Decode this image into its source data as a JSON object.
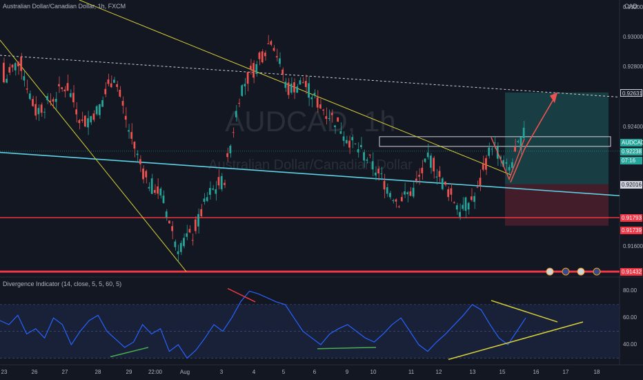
{
  "header": {
    "symbol_line": "Australian Dollar/Canadian Dollar, 1h, FXCM",
    "currency": "CAD",
    "indicator_line": "Divergence Indicator (14, close, 5, 5, 60, 5)"
  },
  "watermark": {
    "ticker": "AUDCAD, 1h",
    "name": "Australian Dollar/Canadian Dollar"
  },
  "price_axis_ticks": [
    "0.93200",
    "0.93000",
    "0.92800",
    "0.92600",
    "0.92400",
    "0.92200",
    "0.92000",
    "0.91800",
    "0.91600",
    "0.91432"
  ],
  "indicator_axis_ticks": [
    "80.00",
    "60.00",
    "40.00"
  ],
  "time_axis_ticks": [
    "23",
    "26",
    "27",
    "28",
    "29",
    "22:00",
    "Aug",
    "3",
    "4",
    "5",
    "6",
    "9",
    "10",
    "11",
    "12",
    "13",
    "15",
    "16",
    "17",
    "18",
    "19"
  ],
  "price_tags": [
    {
      "text": "0.92631",
      "color": "#1a1f2b",
      "border": "#d1d4dc",
      "textcolor": "#d1d4dc"
    },
    {
      "text": "AUDCAD",
      "color": "#26a69a",
      "textcolor": "#ffffff"
    },
    {
      "text": "0.92238",
      "color": "#26a69a",
      "textcolor": "#ffffff"
    },
    {
      "text": "07:16",
      "color": "#26a69a",
      "textcolor": "#ffffff"
    },
    {
      "text": "0.92016",
      "color": "#d1d4dc",
      "textcolor": "#131722"
    },
    {
      "text": "0.91793",
      "color": "#f23645",
      "textcolor": "#ffffff"
    },
    {
      "text": "0.91739",
      "color": "#f23645",
      "textcolor": "#ffffff"
    },
    {
      "text": "0.91432",
      "color": "#f23645",
      "textcolor": "#ffffff"
    }
  ],
  "chart_data": {
    "type": "candlestick",
    "title": "Australian Dollar/Canadian Dollar, 1h, FXCM",
    "currency": "CAD",
    "ylim": [
      0.914,
      0.9325
    ],
    "ohlc_samples": [
      [
        0.9283,
        0.9285,
        0.9262,
        0.927
      ],
      [
        0.927,
        0.9288,
        0.9268,
        0.9285
      ],
      [
        0.9285,
        0.9286,
        0.9245,
        0.925
      ],
      [
        0.925,
        0.9262,
        0.924,
        0.9258
      ],
      [
        0.9258,
        0.9272,
        0.925,
        0.9268
      ],
      [
        0.9268,
        0.927,
        0.9238,
        0.9242
      ],
      [
        0.9242,
        0.9256,
        0.9238,
        0.9252
      ],
      [
        0.9252,
        0.9278,
        0.925,
        0.9275
      ],
      [
        0.9275,
        0.9277,
        0.923,
        0.9235
      ],
      [
        0.9235,
        0.9238,
        0.92,
        0.9205
      ],
      [
        0.9205,
        0.9212,
        0.9185,
        0.9195
      ],
      [
        0.9195,
        0.9198,
        0.915,
        0.916
      ],
      [
        0.916,
        0.9172,
        0.9145,
        0.9168
      ],
      [
        0.9168,
        0.92,
        0.9165,
        0.9195
      ],
      [
        0.9195,
        0.921,
        0.919,
        0.9205
      ],
      [
        0.9205,
        0.927,
        0.9202,
        0.9265
      ],
      [
        0.9265,
        0.9285,
        0.9255,
        0.928
      ],
      [
        0.928,
        0.931,
        0.9275,
        0.93
      ],
      [
        0.93,
        0.9302,
        0.926,
        0.9265
      ],
      [
        0.9265,
        0.928,
        0.9255,
        0.927
      ],
      [
        0.927,
        0.9272,
        0.925,
        0.9255
      ],
      [
        0.9255,
        0.9262,
        0.924,
        0.9245
      ],
      [
        0.9245,
        0.925,
        0.9225,
        0.923
      ],
      [
        0.923,
        0.9238,
        0.9215,
        0.922
      ],
      [
        0.922,
        0.923,
        0.92,
        0.9205
      ],
      [
        0.9205,
        0.921,
        0.9185,
        0.919
      ],
      [
        0.919,
        0.9202,
        0.918,
        0.9198
      ],
      [
        0.9198,
        0.9225,
        0.9195,
        0.922
      ],
      [
        0.922,
        0.9222,
        0.9195,
        0.92
      ],
      [
        0.92,
        0.9203,
        0.9182,
        0.9185
      ],
      [
        0.9185,
        0.9198,
        0.918,
        0.9195
      ],
      [
        0.9195,
        0.9235,
        0.9192,
        0.923
      ],
      [
        0.923,
        0.9233,
        0.9205,
        0.921
      ],
      [
        0.921,
        0.9238,
        0.9208,
        0.9235
      ]
    ],
    "last_price": 0.92238,
    "levels": [
      {
        "name": "target",
        "value": 0.92631
      },
      {
        "name": "entry",
        "value": 0.92016
      },
      {
        "name": "support",
        "value": 0.91793
      },
      {
        "name": "stop",
        "value": 0.91739
      },
      {
        "name": "major support",
        "value": 0.91432
      }
    ],
    "indicator": {
      "name": "Divergence Indicator (14, close, 5, 5, 60, 5)",
      "ylim": [
        25,
        90
      ],
      "values": [
        58,
        55,
        62,
        48,
        52,
        45,
        60,
        55,
        40,
        50,
        58,
        62,
        50,
        44,
        38,
        42,
        55,
        48,
        52,
        35,
        40,
        30,
        36,
        45,
        55,
        50,
        60,
        72,
        80,
        78,
        75,
        72,
        70,
        60,
        50,
        45,
        40,
        48,
        52,
        55,
        50,
        45,
        42,
        48,
        55,
        60,
        50,
        40,
        35,
        42,
        48,
        55,
        62,
        70,
        66,
        55,
        45,
        40,
        50,
        60
      ]
    }
  }
}
